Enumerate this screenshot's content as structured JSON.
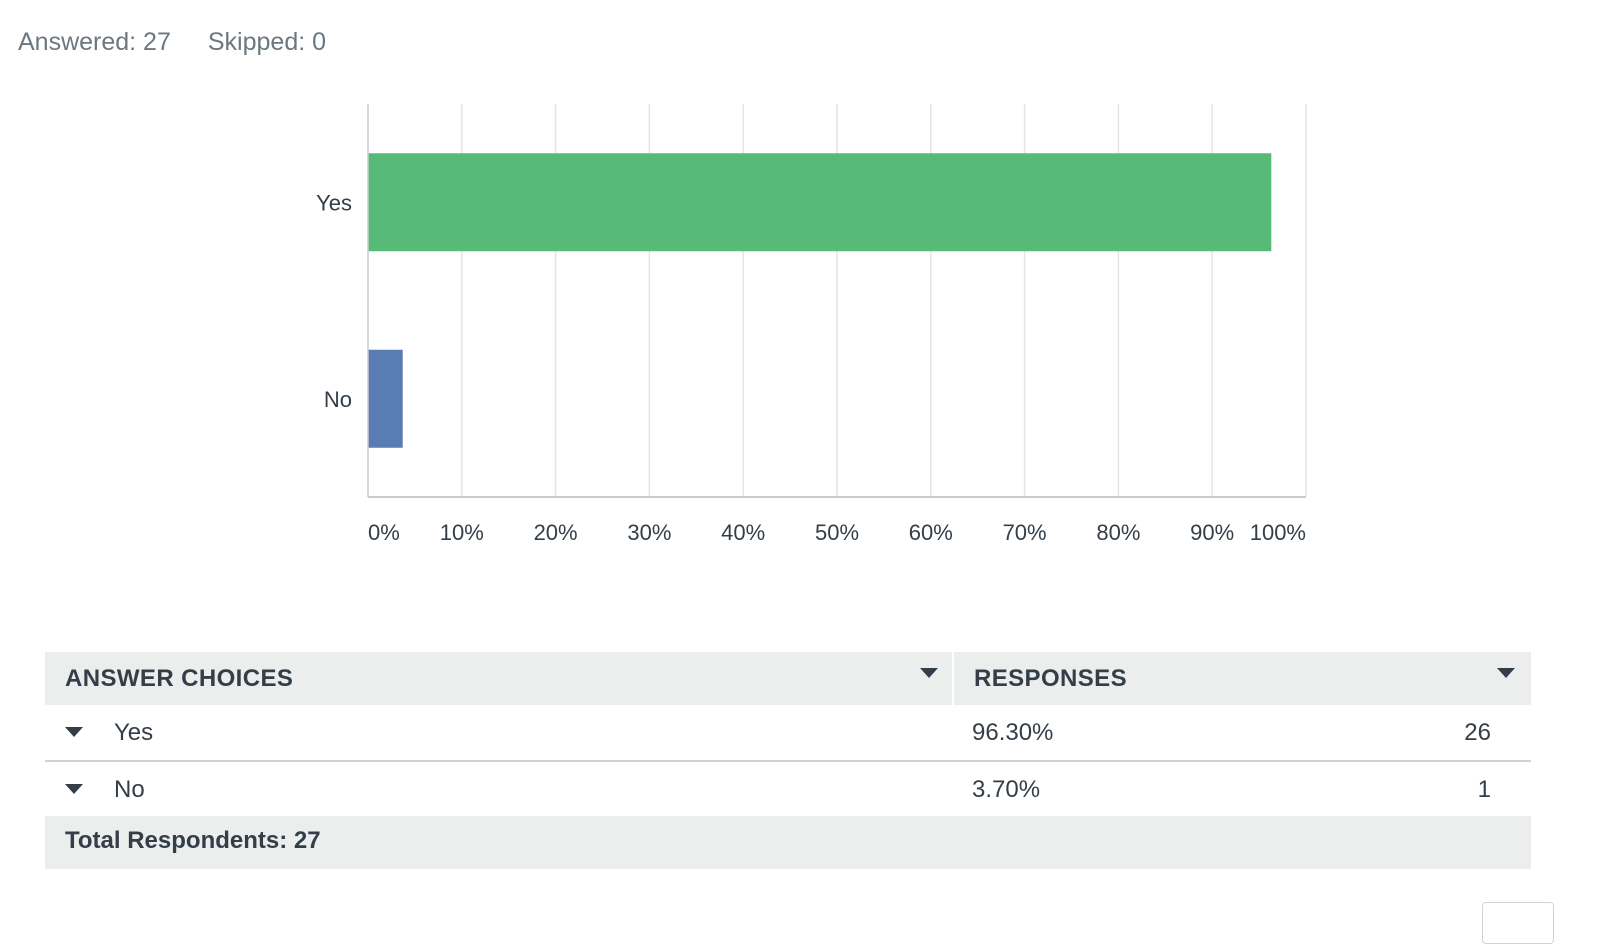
{
  "summary": {
    "answered": "Answered: 27",
    "skipped": "Skipped: 0"
  },
  "chart_data": {
    "type": "bar",
    "orientation": "horizontal",
    "categories": [
      "Yes",
      "No"
    ],
    "values": [
      96.3,
      3.7
    ],
    "colors": [
      "#57bb77",
      "#5a7cb4"
    ],
    "xlim": [
      0,
      100
    ],
    "xticks": [
      "0%",
      "10%",
      "20%",
      "30%",
      "40%",
      "50%",
      "60%",
      "70%",
      "80%",
      "90%",
      "100%"
    ],
    "title": "",
    "xlabel": "",
    "ylabel": "",
    "grid": true
  },
  "table": {
    "headers": {
      "choices": "ANSWER CHOICES",
      "responses": "RESPONSES"
    },
    "rows": [
      {
        "label": "Yes",
        "percent": "96.30%",
        "count": "26"
      },
      {
        "label": "No",
        "percent": "3.70%",
        "count": "1"
      }
    ],
    "total": "Total Respondents: 27"
  }
}
